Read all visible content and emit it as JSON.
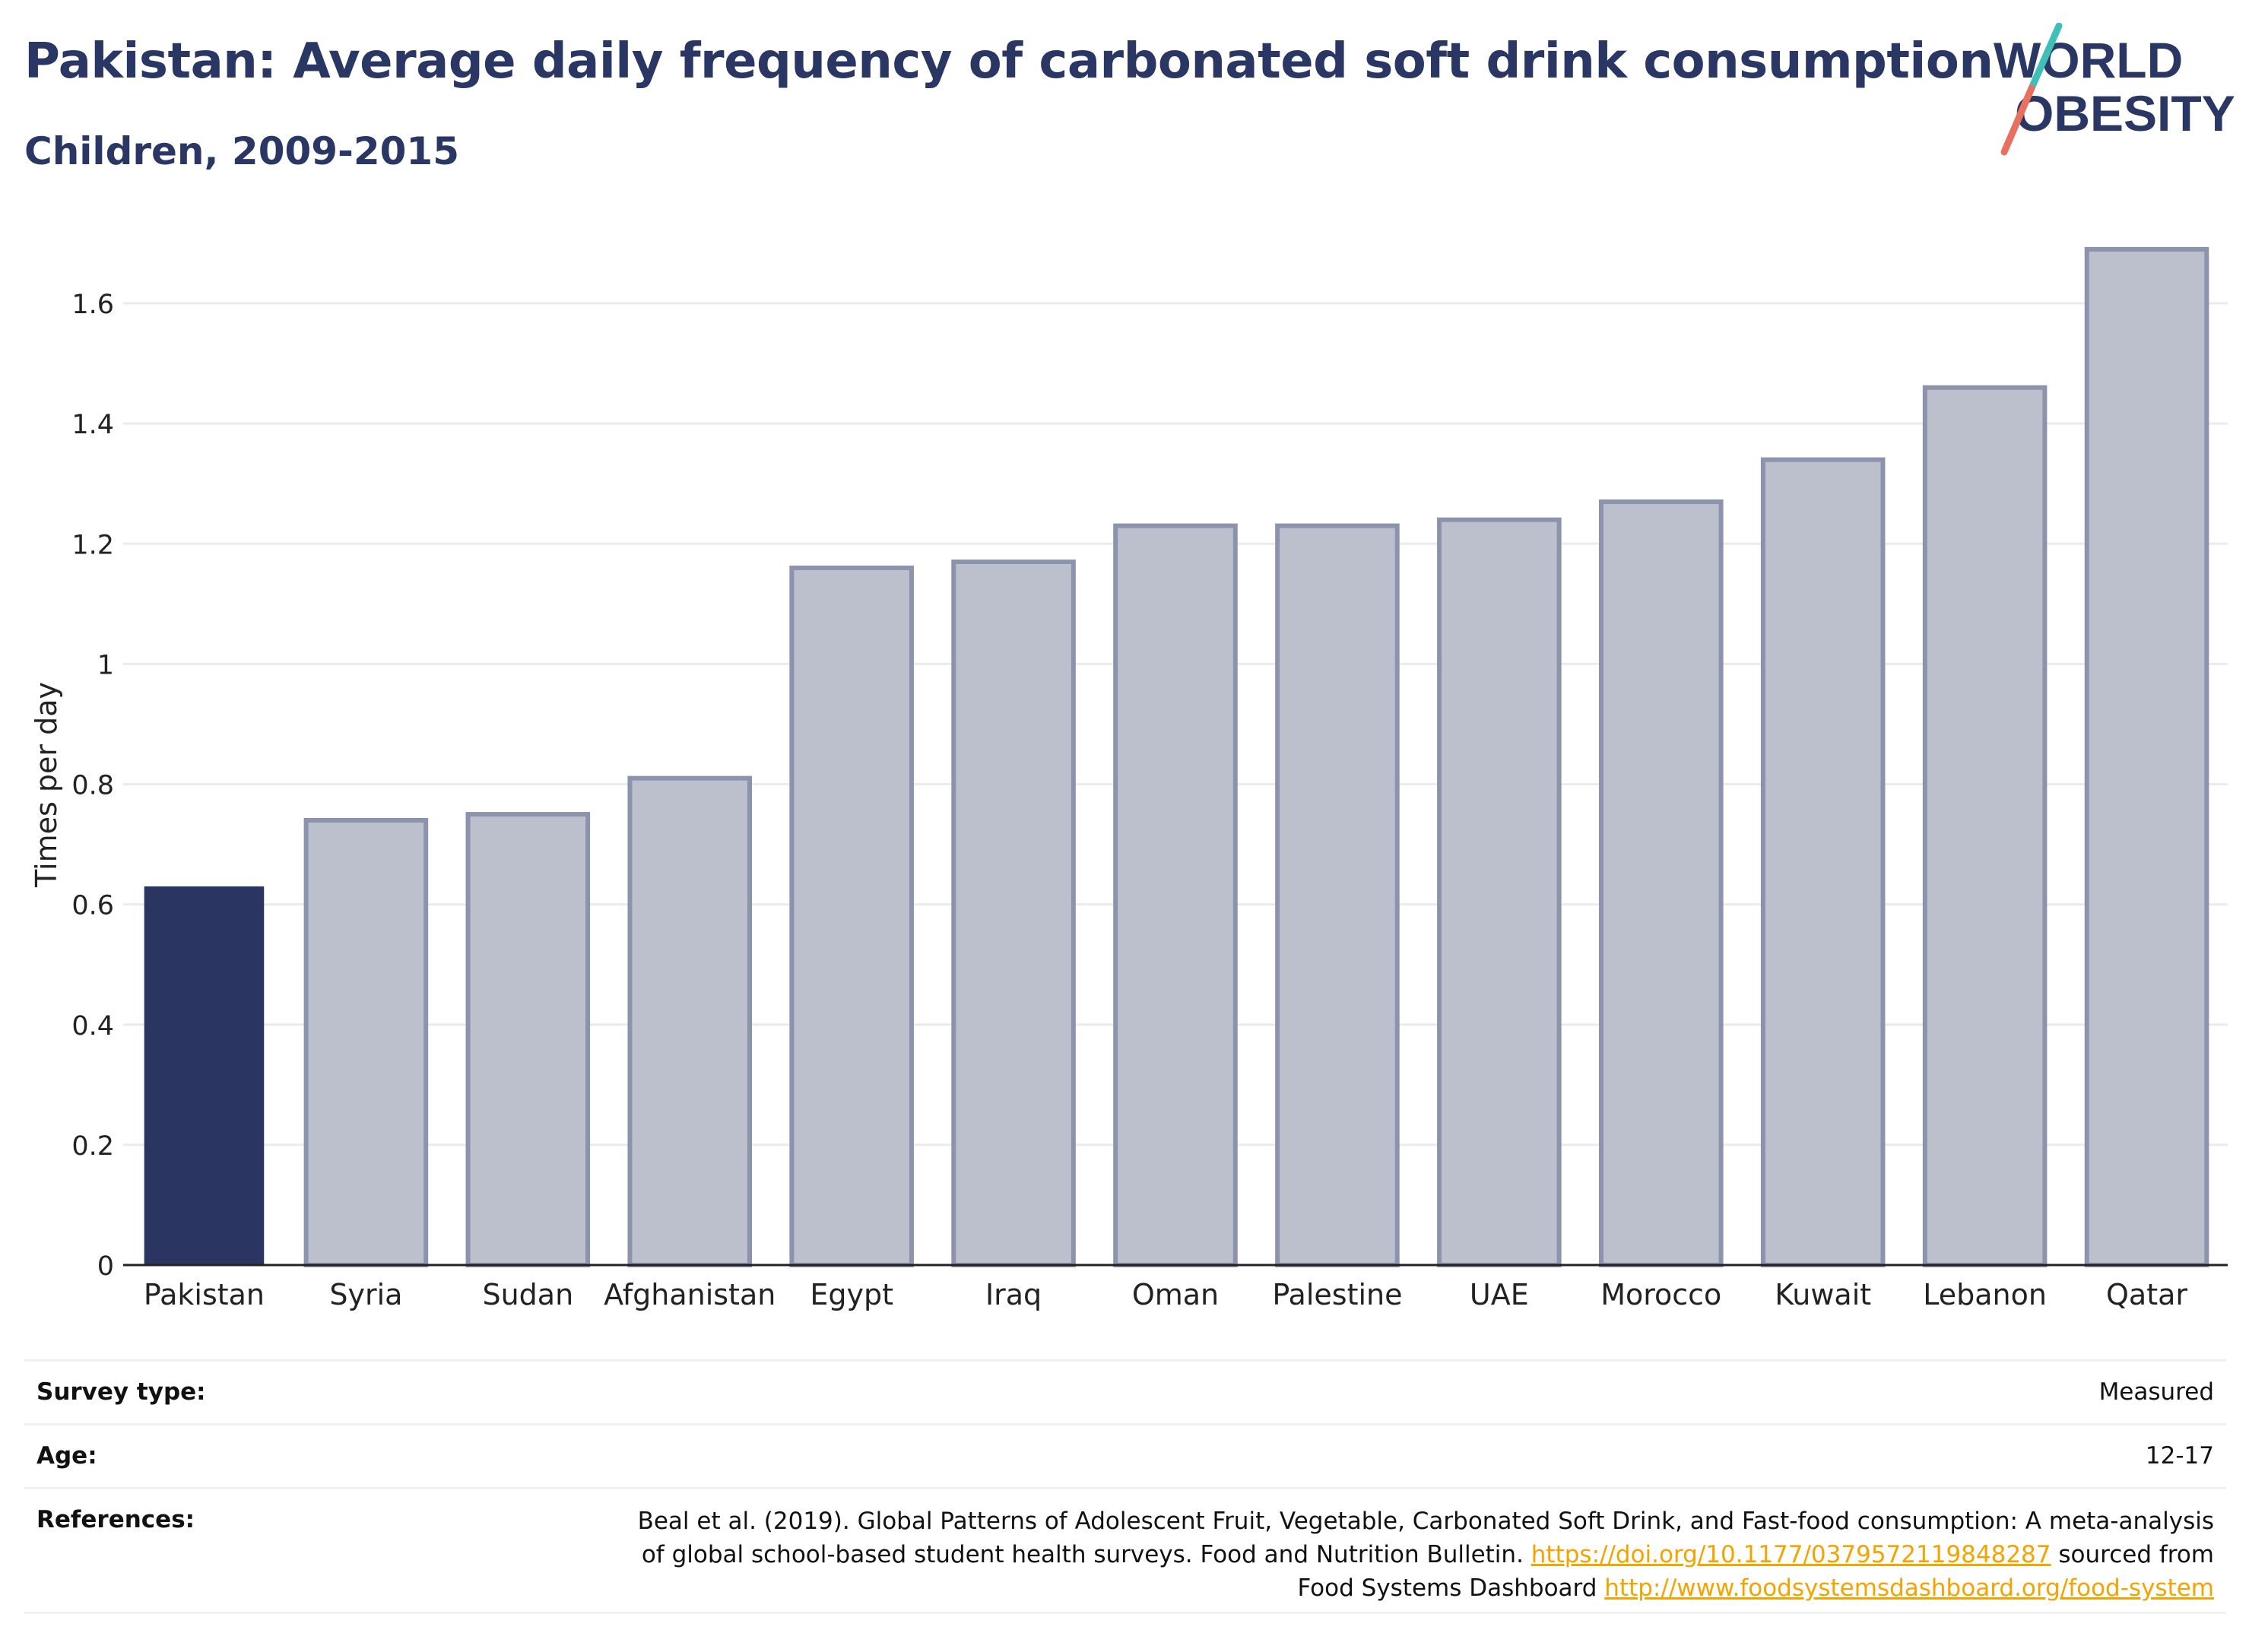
{
  "title": "Pakistan: Average daily frequency of carbonated soft drink consumption",
  "subtitle": "Children, 2009-2015",
  "logo": {
    "line1": "WORLD",
    "line2": "OBESITY"
  },
  "colors": {
    "highlight_bar": "#2a3661",
    "other_bar_fill": "#bcc0cc",
    "other_bar_stroke": "#8c93ad",
    "title": "#2a3764",
    "grid": "#e9ebef",
    "link": "#f5a300",
    "logo_teal": "#3fbfb8",
    "logo_coral": "#e8705e"
  },
  "chart_data": {
    "type": "bar",
    "categories": [
      "Pakistan",
      "Syria",
      "Sudan",
      "Afghanistan",
      "Egypt",
      "Iraq",
      "Oman",
      "Palestine",
      "UAE",
      "Morocco",
      "Kuwait",
      "Lebanon",
      "Qatar"
    ],
    "values": [
      0.63,
      0.74,
      0.75,
      0.81,
      1.16,
      1.17,
      1.23,
      1.23,
      1.24,
      1.27,
      1.34,
      1.46,
      1.69
    ],
    "highlight": "Pakistan",
    "ylabel": "Times per day",
    "xlabel": "",
    "ylim": [
      0,
      1.7
    ],
    "yticks": [
      0,
      0.2,
      0.4,
      0.6,
      0.8,
      1,
      1.2,
      1.4,
      1.6
    ],
    "ytick_labels": [
      "0",
      "0.2",
      "0.4",
      "0.6",
      "0.8",
      "1",
      "1.2",
      "1.4",
      "1.6"
    ],
    "grid": true
  },
  "info": {
    "survey_type_label": "Survey type:",
    "survey_type_value": "Measured",
    "age_label": "Age:",
    "age_value": "12-17",
    "references_label": "References:",
    "ref_text_1": "Beal et al. (2019). Global Patterns of Adolescent Fruit, Vegetable, Carbonated Soft Drink, and Fast-food consumption: A meta-analysis of global school-based student health surveys. Food and Nutrition Bulletin.",
    "ref_link_1": "https://doi.org/10.1177/0379572119848287",
    "ref_text_2": "sourced from Food Systems Dashboard",
    "ref_link_2": "http://www.foodsystemsdashboard.org/food-system"
  }
}
